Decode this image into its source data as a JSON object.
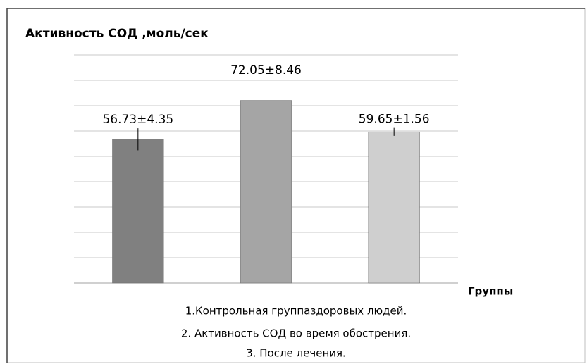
{
  "chart_data": {
    "type": "bar",
    "title": "Активность СОД ,моль/сек",
    "xlabel": "Группы",
    "categories": [
      null,
      null,
      null
    ],
    "values": [
      56.73,
      72.05,
      59.65
    ],
    "errors": [
      4.35,
      8.46,
      1.56
    ],
    "value_labels": [
      "56.73±4.35",
      "72.05±8.46",
      "59.65±1.56"
    ],
    "colors": [
      "#808080",
      "#a5a5a5",
      "#cfcfcf"
    ],
    "ylim": [
      0,
      90
    ],
    "yticks": [
      0,
      10,
      20,
      30,
      40,
      50,
      60,
      70,
      80,
      90
    ],
    "grid": true,
    "notes": [
      "1.Контрольная группаздоровых людей.",
      "2.  Активность СОД во время обострения.",
      "3. После лечения."
    ]
  }
}
